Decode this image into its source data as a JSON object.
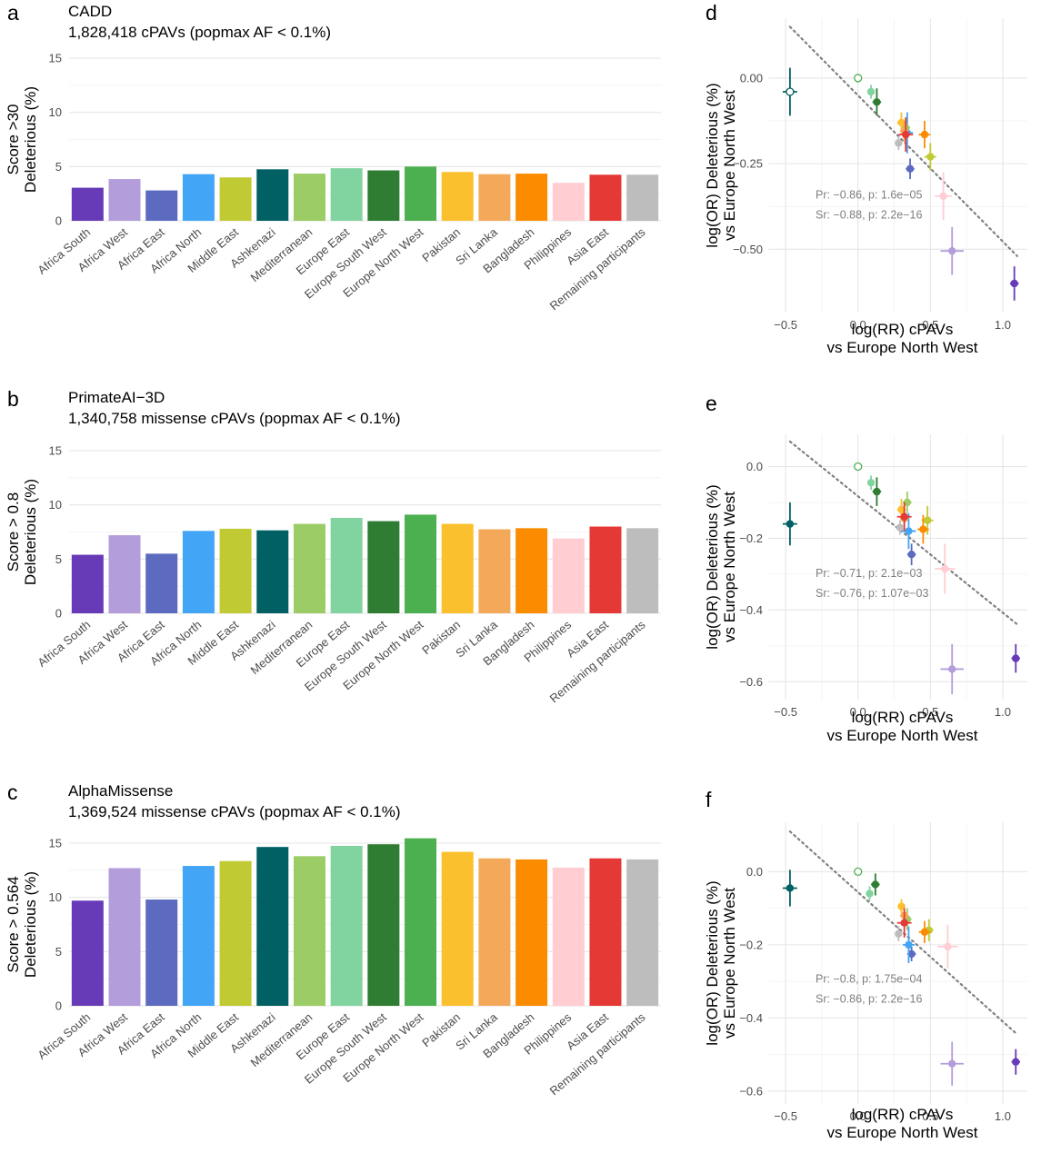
{
  "colors": {
    "Africa South": "#673AB7",
    "Africa West": "#B39DDB",
    "Africa East": "#5C6BC0",
    "Africa North": "#42A5F5",
    "Middle East": "#C0CA33",
    "Ashkenazi": "#006064",
    "Mediterranean": "#9CCC65",
    "Europe East": "#81D4A0",
    "Europe South West": "#2E7D32",
    "Europe North West": "#4CAF50",
    "Pakistan": "#FBC02D",
    "Sri Lanka": "#F4A95A",
    "Bangladesh": "#FB8C00",
    "Philippines": "#FFCDD2",
    "Asia East": "#E53935",
    "Remaining participants": "#BDBDBD",
    "trendline": "#808080"
  },
  "chart_data": [
    {
      "panel": "a",
      "type": "bar",
      "title": "CADD",
      "subtitle": "1,828,418 cPAVs (popmax AF < 0.1%)",
      "ylabel": [
        "Score >30",
        "Deleterious (%)"
      ],
      "ylim": [
        0,
        15
      ],
      "yticks": [
        0,
        5,
        10,
        15
      ],
      "grid": true,
      "categories": [
        "Africa South",
        "Africa West",
        "Africa East",
        "Africa North",
        "Middle East",
        "Ashkenazi",
        "Mediterranean",
        "Europe East",
        "Europe South West",
        "Europe North West",
        "Pakistan",
        "Sri Lanka",
        "Bangladesh",
        "Philippines",
        "Asia East",
        "Remaining participants"
      ],
      "values": [
        3.05,
        3.85,
        2.8,
        4.3,
        4.0,
        4.75,
        4.35,
        4.85,
        4.65,
        5.0,
        4.5,
        4.3,
        4.35,
        3.5,
        4.25,
        4.25
      ]
    },
    {
      "panel": "b",
      "type": "bar",
      "title": "PrimateAI−3D",
      "subtitle": "1,340,758 missense cPAVs (popmax AF < 0.1%)",
      "ylabel": [
        "Score > 0.8",
        "Deleterious (%)"
      ],
      "ylim": [
        0,
        15
      ],
      "yticks": [
        0,
        5,
        10,
        15
      ],
      "grid": true,
      "categories": [
        "Africa South",
        "Africa West",
        "Africa East",
        "Africa North",
        "Middle East",
        "Ashkenazi",
        "Mediterranean",
        "Europe East",
        "Europe South West",
        "Europe North West",
        "Pakistan",
        "Sri Lanka",
        "Bangladesh",
        "Philippines",
        "Asia East",
        "Remaining participants"
      ],
      "values": [
        5.4,
        7.2,
        5.5,
        7.6,
        7.8,
        7.65,
        8.25,
        8.8,
        8.5,
        9.1,
        8.25,
        7.75,
        7.85,
        6.9,
        8.0,
        7.85
      ]
    },
    {
      "panel": "c",
      "type": "bar",
      "title": "AlphaMissense",
      "subtitle": "1,369,524 missense cPAVs (popmax AF < 0.1%)",
      "ylabel": [
        "Score > 0.564",
        "Deleterious (%)"
      ],
      "ylim": [
        0,
        15
      ],
      "yticks": [
        0,
        5,
        10,
        15
      ],
      "grid": true,
      "categories": [
        "Africa South",
        "Africa West",
        "Africa East",
        "Africa North",
        "Middle East",
        "Ashkenazi",
        "Mediterranean",
        "Europe East",
        "Europe South West",
        "Europe North West",
        "Pakistan",
        "Sri Lanka",
        "Bangladesh",
        "Philippines",
        "Asia East",
        "Remaining participants"
      ],
      "values": [
        9.7,
        12.7,
        9.8,
        12.9,
        13.35,
        14.65,
        13.8,
        14.75,
        14.9,
        15.45,
        14.2,
        13.6,
        13.5,
        12.75,
        13.6,
        13.5
      ]
    },
    {
      "panel": "d",
      "type": "scatter",
      "xlabel": [
        "log(RR) cPAVs",
        "vs Europe North West"
      ],
      "ylabel": [
        "log(OR) Deleterious (%)",
        "vs Europe North West"
      ],
      "xlim": [
        -0.62,
        1.17
      ],
      "ylim": [
        -0.685,
        0.175
      ],
      "xticks": [
        -0.5,
        0.0,
        0.5,
        1.0
      ],
      "xtick_labels": [
        "−0.5",
        "0.0",
        "0.5",
        "1.0"
      ],
      "yticks": [
        0.0,
        -0.25,
        -0.5
      ],
      "ytick_labels": [
        "0.00",
        "−0.25",
        "−0.50"
      ],
      "trendline": {
        "x": [
          -0.47,
          1.1
        ],
        "y": [
          0.15,
          -0.52
        ]
      },
      "stats": [
        "Pr: −0.86, p: 1.6e−05",
        "Sr: −0.88, p: 2.2e−16"
      ],
      "points": [
        {
          "group": "Africa South",
          "x": 1.08,
          "y": -0.6,
          "xerr": 0.03,
          "yerr": 0.05
        },
        {
          "group": "Africa West",
          "x": 0.65,
          "y": -0.505,
          "xerr": 0.08,
          "yerr": 0.07
        },
        {
          "group": "Africa East",
          "x": 0.36,
          "y": -0.265,
          "xerr": 0.03,
          "yerr": 0.03
        },
        {
          "group": "Africa North",
          "x": 0.34,
          "y": -0.16,
          "xerr": 0.04,
          "yerr": 0.06
        },
        {
          "group": "Middle East",
          "x": 0.5,
          "y": -0.23,
          "xerr": 0.04,
          "yerr": 0.04
        },
        {
          "group": "Ashkenazi",
          "x": -0.47,
          "y": -0.04,
          "xerr": 0.05,
          "yerr": 0.07,
          "hollow": true
        },
        {
          "group": "Mediterranean",
          "x": 0.33,
          "y": -0.145,
          "xerr": 0.03,
          "yerr": 0.03
        },
        {
          "group": "Europe East",
          "x": 0.09,
          "y": -0.04,
          "xerr": 0.02,
          "yerr": 0.02
        },
        {
          "group": "Europe South West",
          "x": 0.13,
          "y": -0.07,
          "xerr": 0.03,
          "yerr": 0.04
        },
        {
          "group": "Europe North West",
          "x": 0.0,
          "y": 0.0,
          "xerr": 0.0,
          "yerr": 0.0,
          "hollow": true
        },
        {
          "group": "Pakistan",
          "x": 0.3,
          "y": -0.13,
          "xerr": 0.03,
          "yerr": 0.03
        },
        {
          "group": "Sri Lanka",
          "x": 0.32,
          "y": -0.155,
          "xerr": 0.03,
          "yerr": 0.03
        },
        {
          "group": "Bangladesh",
          "x": 0.46,
          "y": -0.165,
          "xerr": 0.04,
          "yerr": 0.04
        },
        {
          "group": "Philippines",
          "x": 0.59,
          "y": -0.345,
          "xerr": 0.06,
          "yerr": 0.07
        },
        {
          "group": "Asia East",
          "x": 0.33,
          "y": -0.165,
          "xerr": 0.05,
          "yerr": 0.05
        },
        {
          "group": "Remaining participants",
          "x": 0.28,
          "y": -0.19,
          "xerr": 0.02,
          "yerr": 0.02
        }
      ]
    },
    {
      "panel": "e",
      "type": "scatter",
      "xlabel": [
        "log(RR) cPAVs",
        "vs Europe North West"
      ],
      "ylabel": [
        "log(OR) Deleterious (%)",
        "vs Europe North West"
      ],
      "xlim": [
        -0.62,
        1.17
      ],
      "ylim": [
        -0.65,
        0.09
      ],
      "xticks": [
        -0.5,
        0.0,
        0.5,
        1.0
      ],
      "xtick_labels": [
        "−0.5",
        "0.0",
        "0.5",
        "1.0"
      ],
      "yticks": [
        0.0,
        -0.2,
        -0.4,
        -0.6
      ],
      "ytick_labels": [
        "0.0",
        "−0.2",
        "−0.4",
        "−0.6"
      ],
      "trendline": {
        "x": [
          -0.47,
          1.1
        ],
        "y": [
          0.07,
          -0.44
        ]
      },
      "stats": [
        "Pr: −0.71, p: 2.1e−03",
        "Sr: −0.76, p: 1.07e−03"
      ],
      "points": [
        {
          "group": "Africa South",
          "x": 1.09,
          "y": -0.535,
          "xerr": 0.03,
          "yerr": 0.04
        },
        {
          "group": "Africa West",
          "x": 0.65,
          "y": -0.565,
          "xerr": 0.08,
          "yerr": 0.07
        },
        {
          "group": "Africa East",
          "x": 0.37,
          "y": -0.245,
          "xerr": 0.03,
          "yerr": 0.03
        },
        {
          "group": "Africa North",
          "x": 0.35,
          "y": -0.18,
          "xerr": 0.05,
          "yerr": 0.05
        },
        {
          "group": "Middle East",
          "x": 0.48,
          "y": -0.15,
          "xerr": 0.04,
          "yerr": 0.04
        },
        {
          "group": "Ashkenazi",
          "x": -0.47,
          "y": -0.16,
          "xerr": 0.05,
          "yerr": 0.06
        },
        {
          "group": "Mediterranean",
          "x": 0.34,
          "y": -0.1,
          "xerr": 0.03,
          "yerr": 0.03
        },
        {
          "group": "Europe East",
          "x": 0.09,
          "y": -0.045,
          "xerr": 0.02,
          "yerr": 0.02
        },
        {
          "group": "Europe South West",
          "x": 0.13,
          "y": -0.07,
          "xerr": 0.03,
          "yerr": 0.04
        },
        {
          "group": "Europe North West",
          "x": 0.0,
          "y": 0.0,
          "xerr": 0.0,
          "yerr": 0.0,
          "hollow": true
        },
        {
          "group": "Pakistan",
          "x": 0.3,
          "y": -0.12,
          "xerr": 0.03,
          "yerr": 0.03
        },
        {
          "group": "Sri Lanka",
          "x": 0.32,
          "y": -0.145,
          "xerr": 0.03,
          "yerr": 0.03
        },
        {
          "group": "Bangladesh",
          "x": 0.45,
          "y": -0.175,
          "xerr": 0.04,
          "yerr": 0.04
        },
        {
          "group": "Philippines",
          "x": 0.6,
          "y": -0.285,
          "xerr": 0.07,
          "yerr": 0.07
        },
        {
          "group": "Asia East",
          "x": 0.32,
          "y": -0.14,
          "xerr": 0.05,
          "yerr": 0.04
        },
        {
          "group": "Remaining participants",
          "x": 0.29,
          "y": -0.17,
          "xerr": 0.02,
          "yerr": 0.02
        }
      ]
    },
    {
      "panel": "f",
      "type": "scatter",
      "xlabel": [
        "log(RR) cPAVs",
        "vs Europe North West"
      ],
      "ylabel": [
        "log(OR) Deleterious (%)",
        "vs Europe North West"
      ],
      "xlim": [
        -0.62,
        1.17
      ],
      "ylim": [
        -0.635,
        0.135
      ],
      "xticks": [
        -0.5,
        0.0,
        0.5,
        1.0
      ],
      "xtick_labels": [
        "−0.5",
        "0.0",
        "0.5",
        "1.0"
      ],
      "yticks": [
        0.0,
        -0.2,
        -0.4,
        -0.6
      ],
      "ytick_labels": [
        "0.0",
        "−0.2",
        "−0.4",
        "−0.6"
      ],
      "trendline": {
        "x": [
          -0.47,
          1.1
        ],
        "y": [
          0.11,
          -0.445
        ]
      },
      "stats": [
        "Pr: −0.8, p: 1.75e−04",
        "Sr: −0.86, p: 2.2e−16"
      ],
      "points": [
        {
          "group": "Africa South",
          "x": 1.09,
          "y": -0.52,
          "xerr": 0.03,
          "yerr": 0.035
        },
        {
          "group": "Africa West",
          "x": 0.65,
          "y": -0.525,
          "xerr": 0.08,
          "yerr": 0.06
        },
        {
          "group": "Africa East",
          "x": 0.37,
          "y": -0.225,
          "xerr": 0.03,
          "yerr": 0.02
        },
        {
          "group": "Africa North",
          "x": 0.35,
          "y": -0.2,
          "xerr": 0.04,
          "yerr": 0.05
        },
        {
          "group": "Middle East",
          "x": 0.49,
          "y": -0.16,
          "xerr": 0.03,
          "yerr": 0.03
        },
        {
          "group": "Ashkenazi",
          "x": -0.47,
          "y": -0.045,
          "xerr": 0.05,
          "yerr": 0.05
        },
        {
          "group": "Mediterranean",
          "x": 0.34,
          "y": -0.13,
          "xerr": 0.03,
          "yerr": 0.03
        },
        {
          "group": "Europe East",
          "x": 0.08,
          "y": -0.06,
          "xerr": 0.02,
          "yerr": 0.02
        },
        {
          "group": "Europe South West",
          "x": 0.12,
          "y": -0.035,
          "xerr": 0.03,
          "yerr": 0.03
        },
        {
          "group": "Europe North West",
          "x": 0.0,
          "y": 0.0,
          "xerr": 0.0,
          "yerr": 0.0,
          "hollow": true
        },
        {
          "group": "Pakistan",
          "x": 0.3,
          "y": -0.095,
          "xerr": 0.02,
          "yerr": 0.02
        },
        {
          "group": "Sri Lanka",
          "x": 0.32,
          "y": -0.12,
          "xerr": 0.03,
          "yerr": 0.03
        },
        {
          "group": "Bangladesh",
          "x": 0.46,
          "y": -0.165,
          "xerr": 0.04,
          "yerr": 0.03
        },
        {
          "group": "Philippines",
          "x": 0.62,
          "y": -0.205,
          "xerr": 0.07,
          "yerr": 0.06
        },
        {
          "group": "Asia East",
          "x": 0.32,
          "y": -0.14,
          "xerr": 0.05,
          "yerr": 0.04
        },
        {
          "group": "Remaining participants",
          "x": 0.28,
          "y": -0.17,
          "xerr": 0.02,
          "yerr": 0.02
        }
      ]
    }
  ]
}
